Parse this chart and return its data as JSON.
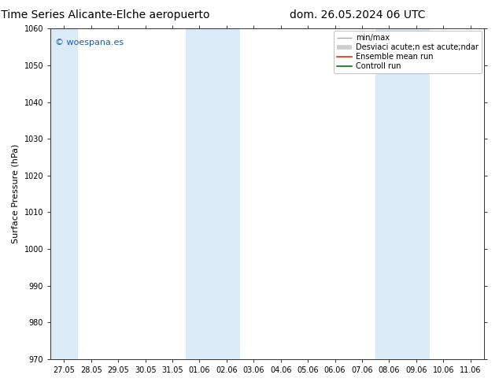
{
  "title_left": "ENS Time Series Alicante-Elche aeropuerto",
  "title_right": "dom. 26.05.2024 06 UTC",
  "ylabel": "Surface Pressure (hPa)",
  "ylim": [
    970,
    1060
  ],
  "yticks": [
    970,
    980,
    990,
    1000,
    1010,
    1020,
    1030,
    1040,
    1050,
    1060
  ],
  "xtick_labels": [
    "27.05",
    "28.05",
    "29.05",
    "30.05",
    "31.05",
    "01.06",
    "02.06",
    "03.06",
    "04.06",
    "05.06",
    "06.06",
    "07.06",
    "08.06",
    "09.06",
    "10.06",
    "11.06"
  ],
  "xtick_positions": [
    0,
    1,
    2,
    3,
    4,
    5,
    6,
    7,
    8,
    9,
    10,
    11,
    12,
    13,
    14,
    15
  ],
  "band_xranges": [
    [
      -0.5,
      0.5
    ],
    [
      4.5,
      6.5
    ],
    [
      11.5,
      13.5
    ]
  ],
  "band_color": "#daeaf7",
  "background_color": "#ffffff",
  "watermark": "© woespana.es",
  "watermark_color": "#1a5fad",
  "legend_entries": [
    "min/max",
    "Desviaci acute;n est acute;ndar",
    "Ensemble mean run",
    "Controll run"
  ],
  "legend_colors_line": [
    "#aaaaaa",
    "#cccccc",
    "#ff2200",
    "#007700"
  ],
  "title_fontsize": 10,
  "ylabel_fontsize": 8,
  "tick_fontsize": 7,
  "legend_fontsize": 7
}
